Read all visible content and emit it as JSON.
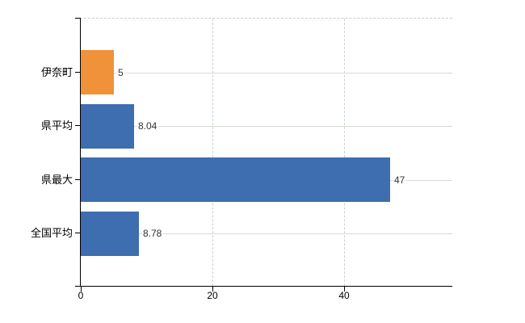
{
  "chart_data": {
    "type": "bar",
    "orientation": "horizontal",
    "title": "",
    "categories": [
      "伊奈町",
      "県平均",
      "県最大",
      "全国平均"
    ],
    "values": [
      5,
      8.04,
      47,
      8.78
    ],
    "value_labels": [
      "5",
      "8.04",
      "47",
      "8.78"
    ],
    "series_colors": [
      "#EF923A",
      "#3E6DB0",
      "#3E6DB0",
      "#3E6DB0"
    ],
    "x_ticks": [
      "0",
      "20",
      "40"
    ],
    "x_tick_values": [
      0,
      20,
      40
    ],
    "xlim": [
      0,
      56.5
    ],
    "grid": true,
    "legend_position": "none",
    "colors": {
      "highlight_bar": "#EF923A",
      "default_bar": "#3E6DB0",
      "axis": "#000000",
      "h_gridline": "#d6ddd3",
      "v_gridline": "#c9d1d8",
      "top_border": "#d4ccd1",
      "value_label_text": "#333333",
      "tick_label_text": "#000000",
      "background": "#ffffff"
    }
  }
}
